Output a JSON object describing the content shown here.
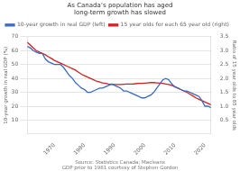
{
  "chart_data": {
    "type": "line",
    "title": "As Canada’s population has aged\nlong-term growth has slowed",
    "source": "Source: Statistics Canada; Macleans\nGDP prior to 1981 courtesy of Stephen Gordon",
    "ylabel": "10-year growth in real GDP (%)",
    "y2label": "Ratio of 15 year olds to 65 year olds",
    "x": [
      1961,
      1962,
      1963,
      1964,
      1965,
      1966,
      1967,
      1968,
      1969,
      1970,
      1971,
      1972,
      1973,
      1974,
      1975,
      1976,
      1977,
      1978,
      1979,
      1980,
      1981,
      1982,
      1983,
      1984,
      1985,
      1986,
      1987,
      1988,
      1989,
      1990,
      1991,
      1992,
      1993,
      1994,
      1995,
      1996,
      1997,
      1998,
      1999,
      2000,
      2001,
      2002,
      2003,
      2004,
      2005,
      2006,
      2007,
      2008,
      2009,
      2010,
      2011,
      2012,
      2013,
      2014,
      2015,
      2016,
      2017,
      2018,
      2019,
      2020,
      2021,
      2022
    ],
    "series": [
      {
        "name": "10-year growth in real GDP (left)",
        "color": "#3a6abf",
        "values": [
          63,
          62,
          60,
          59,
          58,
          58,
          54,
          52,
          51,
          50,
          50,
          50,
          48,
          45,
          42,
          40,
          37,
          35,
          33,
          32,
          30,
          30,
          31,
          32,
          33,
          33,
          34,
          35,
          36,
          35,
          34,
          33,
          31,
          31,
          30,
          29,
          28,
          27,
          26,
          26,
          27,
          28,
          30,
          33,
          36,
          39,
          40,
          39,
          36,
          34,
          33,
          32,
          31,
          31,
          30,
          29,
          28,
          27,
          24,
          20,
          20,
          19
        ]
      },
      {
        "name": "15 year olds for each 65 year old (right)",
        "color": "#cc2222",
        "axis": "y2",
        "values": [
          3.3,
          3.2,
          3.1,
          3.0,
          2.95,
          2.9,
          2.85,
          2.78,
          2.72,
          2.65,
          2.6,
          2.55,
          2.5,
          2.45,
          2.4,
          2.35,
          2.3,
          2.22,
          2.15,
          2.1,
          2.05,
          2.0,
          1.95,
          1.9,
          1.87,
          1.84,
          1.82,
          1.8,
          1.79,
          1.78,
          1.78,
          1.78,
          1.79,
          1.8,
          1.8,
          1.8,
          1.81,
          1.82,
          1.82,
          1.83,
          1.84,
          1.85,
          1.85,
          1.84,
          1.83,
          1.82,
          1.8,
          1.78,
          1.75,
          1.7,
          1.65,
          1.6,
          1.55,
          1.5,
          1.43,
          1.37,
          1.3,
          1.25,
          1.2,
          1.15,
          1.1,
          1.05
        ]
      }
    ],
    "xlim": [
      1961,
      2022
    ],
    "xticks": [
      1970,
      1980,
      1990,
      2000,
      2010,
      2020
    ],
    "ylim": [
      0,
      70
    ],
    "yticks": [
      10,
      20,
      30,
      40,
      50,
      60,
      70
    ],
    "y2lim": [
      0,
      3.5
    ],
    "y2ticks": [
      0.5,
      {
        "value": 1,
        "label": "1.0"
      },
      1.5,
      {
        "value": 2,
        "label": "2.0"
      },
      2.5,
      {
        "value": 3,
        "label": "3.0"
      },
      3.5
    ],
    "grid": true,
    "legend": "upper left"
  }
}
